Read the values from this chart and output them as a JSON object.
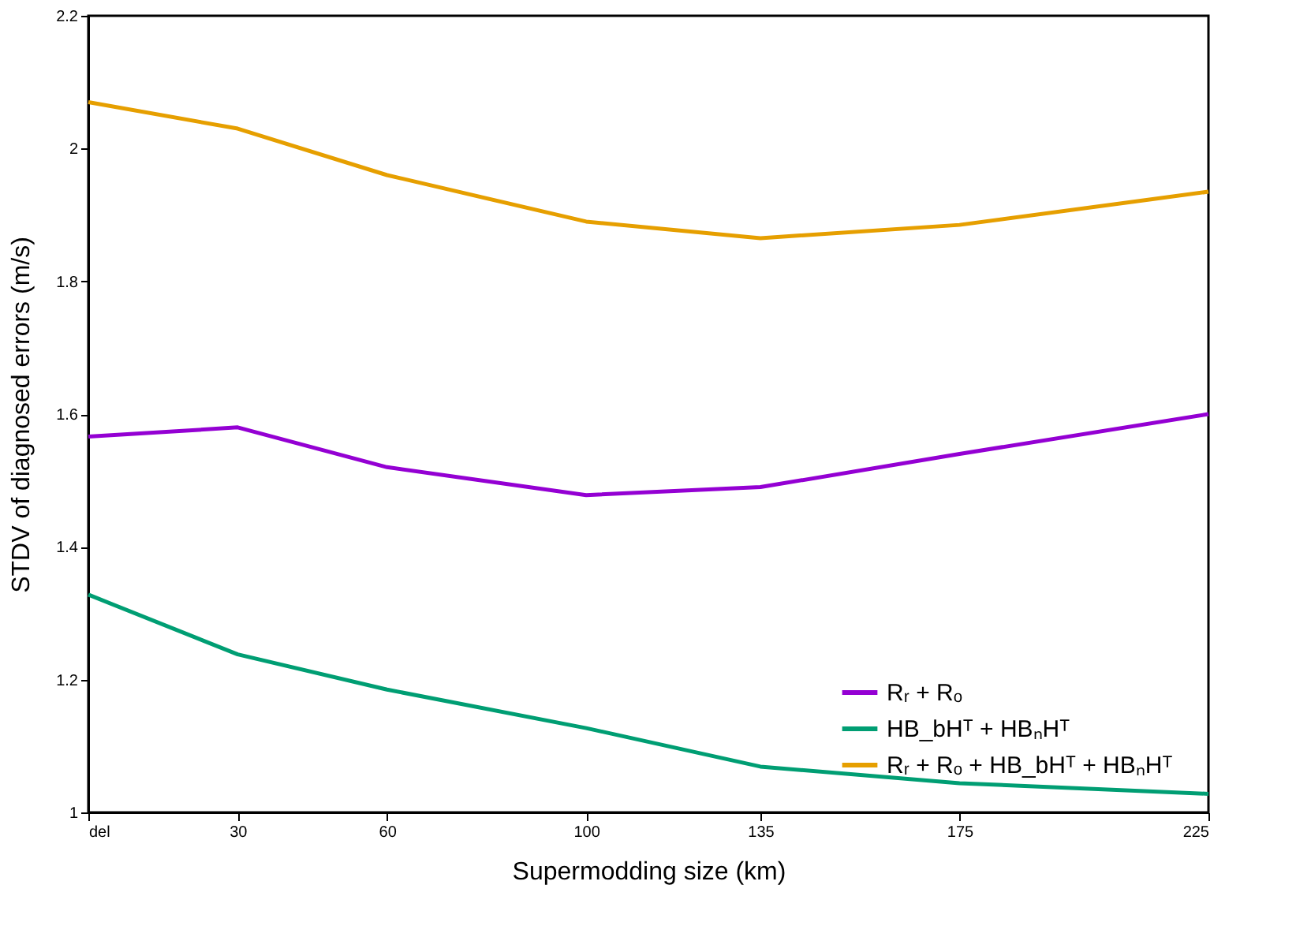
{
  "chart_data": {
    "type": "line",
    "xlabel": "Supermodding size (km)",
    "ylabel": "STDV of diagnosed errors (m/s)",
    "x": [
      0,
      30,
      60,
      100,
      135,
      175,
      225
    ],
    "xlim": [
      0,
      225
    ],
    "xticks": [
      {
        "value": 0,
        "label": "del"
      },
      30,
      60,
      100,
      135,
      175,
      225
    ],
    "ylim": [
      1,
      2.2
    ],
    "yticks": [
      1,
      1.2,
      1.4,
      1.6,
      1.8,
      2,
      2.2
    ],
    "grid": false,
    "legend": "bottom right",
    "marker": "none",
    "line_style": "solid",
    "series": [
      {
        "name": "Rᵣ + Rₒ",
        "color": "#9400d3",
        "values": [
          1.566,
          1.58,
          1.52,
          1.478,
          1.49,
          1.54,
          1.6
        ]
      },
      {
        "name": "HB_bHᵀ + HBₙHᵀ",
        "color": "#009e73",
        "values": [
          1.328,
          1.238,
          1.185,
          1.127,
          1.069,
          1.044,
          1.028
        ]
      },
      {
        "name": "Rᵣ + Rₒ + HB_bHᵀ + HBₙHᵀ",
        "color": "#e69f00",
        "values": [
          2.07,
          2.03,
          1.96,
          1.89,
          1.865,
          1.885,
          1.935
        ]
      }
    ]
  }
}
